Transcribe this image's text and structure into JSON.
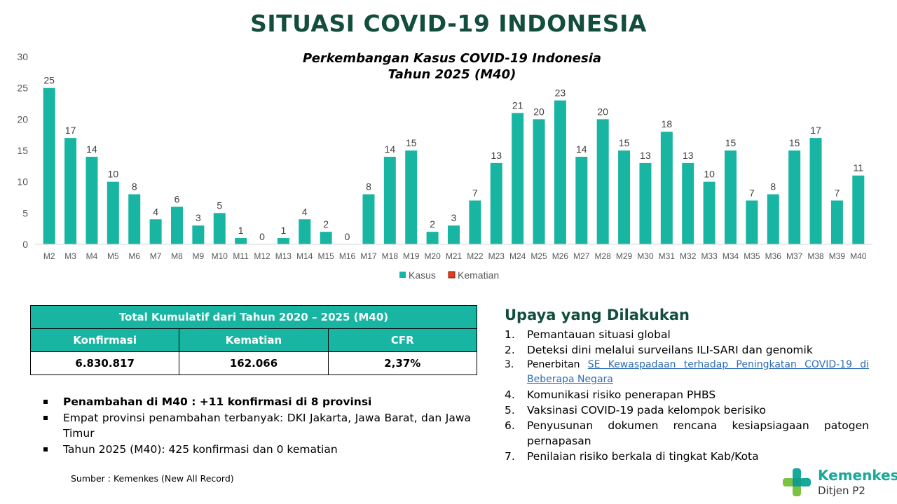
{
  "page_title": "SITUASI COVID-19 INDONESIA",
  "chart_data": {
    "type": "bar",
    "title": "Perkembangan Kasus COVID-19 Indonesia",
    "subtitle": "Tahun 2025 (M40)",
    "categories": [
      "M2",
      "M3",
      "M4",
      "M5",
      "M6",
      "M7",
      "M8",
      "M9",
      "M10",
      "M11",
      "M12",
      "M13",
      "M14",
      "M15",
      "M16",
      "M17",
      "M18",
      "M19",
      "M20",
      "M21",
      "M22",
      "M23",
      "M24",
      "M25",
      "M26",
      "M27",
      "M28",
      "M29",
      "M30",
      "M31",
      "M32",
      "M33",
      "M34",
      "M35",
      "M36",
      "M37",
      "M38",
      "M39",
      "M40"
    ],
    "series": [
      {
        "name": "Kasus",
        "color": "#18b6a2",
        "values": [
          25,
          17,
          14,
          10,
          8,
          4,
          6,
          3,
          5,
          1,
          0,
          1,
          4,
          2,
          0,
          8,
          14,
          15,
          2,
          3,
          7,
          13,
          21,
          20,
          23,
          14,
          20,
          15,
          13,
          18,
          13,
          10,
          15,
          7,
          8,
          15,
          17,
          7,
          11
        ]
      },
      {
        "name": "Kematian",
        "color": "#e23b1e",
        "values": [
          0,
          0,
          0,
          0,
          0,
          0,
          0,
          0,
          0,
          0,
          0,
          0,
          0,
          0,
          0,
          0,
          0,
          0,
          0,
          0,
          0,
          0,
          0,
          0,
          0,
          0,
          0,
          0,
          0,
          0,
          0,
          0,
          0,
          0,
          0,
          0,
          0,
          0,
          0
        ]
      }
    ],
    "ylim": [
      0,
      30
    ],
    "yticks": [
      0,
      5,
      10,
      15,
      20,
      25,
      30
    ],
    "grid": false,
    "legend_position": "bottom"
  },
  "summary_table": {
    "title": "Total Kumulatif dari Tahun 2020 – 2025 (M40)",
    "headers": [
      "Konfirmasi",
      "Kematian",
      "CFR"
    ],
    "values": [
      "6.830.817",
      "162.066",
      "2,37%"
    ]
  },
  "notes": [
    "Penambahan di M40 : +11 konfirmasi di 8 provinsi",
    "Empat provinsi penambahan terbanyak: DKI Jakarta, Jawa Barat, dan Jawa Timur",
    "Tahun 2025 (M40): 425 konfirmasi dan 0 kematian"
  ],
  "source": "Sumber : Kemenkes (New All Record)",
  "actions": {
    "title": "Upaya yang Dilakukan",
    "items": [
      {
        "num": "1.",
        "text": "Pemantauan situasi global"
      },
      {
        "num": "2.",
        "text": "Deteksi dini melalui surveilans ILI-SARI dan genomik"
      },
      {
        "num": "3.",
        "text": "Penerbitan ",
        "link": "SE Kewaspadaan terhadap Peningkatan COVID-19 di Beberapa Negara"
      },
      {
        "num": "4.",
        "text": "Komunikasi risiko penerapan PHBS"
      },
      {
        "num": "5.",
        "text": "Vaksinasi COVID-19 pada kelompok berisiko"
      },
      {
        "num": "6.",
        "text": "Penyusunan dokumen rencana kesiapsiagaan patogen pernapasan"
      },
      {
        "num": "7.",
        "text": "Penilaian risiko berkala di tingkat Kab/Kota"
      }
    ]
  },
  "logo": {
    "name": "Kemenkes",
    "sub": "Ditjen P2"
  }
}
